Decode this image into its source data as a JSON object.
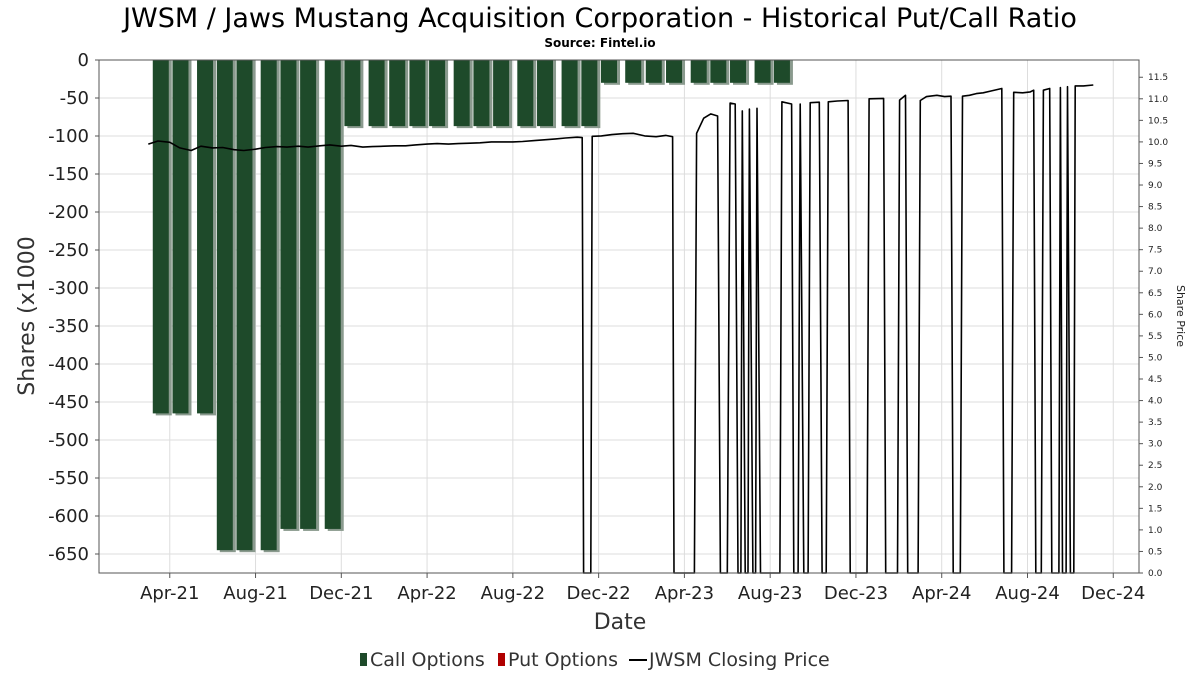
{
  "chart_data": {
    "type": "bar",
    "title": "JWSM / Jaws Mustang Acquisition Corporation - Historical Put/Call Ratio",
    "subtitle": "Source: Fintel.io",
    "xlabel": "Date",
    "ylabel": "Shares (x1000",
    "y2label": "Share Price",
    "ylim": [
      -675,
      0
    ],
    "y2lim": [
      0,
      11.9
    ],
    "yticks": [
      "0",
      "-50",
      "-100",
      "-150",
      "-200",
      "-250",
      "-300",
      "-350",
      "-400",
      "-450",
      "-500",
      "-550",
      "-600",
      "-650"
    ],
    "ytick_values": [
      0,
      -50,
      -100,
      -150,
      -200,
      -250,
      -300,
      -350,
      -400,
      -450,
      -500,
      -550,
      -600,
      -650
    ],
    "y2ticks": [
      "0.0",
      "0.5",
      "1.0",
      "1.5",
      "2.0",
      "2.5",
      "3.0",
      "3.5",
      "4.0",
      "4.5",
      "5.0",
      "5.5",
      "6.0",
      "6.5",
      "7.0",
      "7.5",
      "8.0",
      "8.5",
      "9.0",
      "9.5",
      "10.0",
      "10.5",
      "11.0",
      "11.5"
    ],
    "y2tick_values": [
      0,
      0.5,
      1,
      1.5,
      2,
      2.5,
      3,
      3.5,
      4,
      4.5,
      5,
      5.5,
      6,
      6.5,
      7,
      7.5,
      8,
      8.5,
      9,
      9.5,
      10,
      10.5,
      11,
      11.5
    ],
    "xticks": [
      "Apr-21",
      "Aug-21",
      "Dec-21",
      "Apr-22",
      "Aug-22",
      "Dec-22",
      "Apr-23",
      "Aug-23",
      "Dec-23",
      "Apr-24",
      "Aug-24",
      "Dec-24"
    ],
    "xtick_months": [
      3,
      7,
      11,
      15,
      19,
      23,
      27,
      31,
      35,
      39,
      43,
      47
    ],
    "xlim_months": [
      -0.3,
      48.2
    ],
    "grid": true,
    "legend_position": "bottom",
    "series": [
      {
        "name": "Call Options",
        "type": "bar",
        "color": "#1e4a2a",
        "points": [
          {
            "date": "2021-03-19",
            "value": -465
          },
          {
            "date": "2021-04-16",
            "value": -465
          },
          {
            "date": "2021-05-21",
            "value": -465
          },
          {
            "date": "2021-06-18",
            "value": -645
          },
          {
            "date": "2021-07-16",
            "value": -645
          },
          {
            "date": "2021-08-20",
            "value": -645
          },
          {
            "date": "2021-09-17",
            "value": -617
          },
          {
            "date": "2021-10-15",
            "value": -617
          },
          {
            "date": "2021-11-19",
            "value": -617
          },
          {
            "date": "2021-12-17",
            "value": -87
          },
          {
            "date": "2022-01-21",
            "value": -87
          },
          {
            "date": "2022-02-18",
            "value": -87
          },
          {
            "date": "2022-03-18",
            "value": -87
          },
          {
            "date": "2022-04-15",
            "value": -87
          },
          {
            "date": "2022-05-20",
            "value": -87
          },
          {
            "date": "2022-06-17",
            "value": -87
          },
          {
            "date": "2022-07-15",
            "value": -87
          },
          {
            "date": "2022-08-19",
            "value": -87
          },
          {
            "date": "2022-09-16",
            "value": -87
          },
          {
            "date": "2022-10-21",
            "value": -87
          },
          {
            "date": "2022-11-18",
            "value": -87
          },
          {
            "date": "2022-12-16",
            "value": -30
          },
          {
            "date": "2023-01-20",
            "value": -30
          },
          {
            "date": "2023-02-17",
            "value": -30
          },
          {
            "date": "2023-03-17",
            "value": -30
          },
          {
            "date": "2023-04-21",
            "value": -30
          },
          {
            "date": "2023-05-19",
            "value": -30
          },
          {
            "date": "2023-06-16",
            "value": -30
          },
          {
            "date": "2023-07-21",
            "value": -30
          },
          {
            "date": "2023-08-18",
            "value": -30
          }
        ]
      },
      {
        "name": "Put Options",
        "type": "bar",
        "color": "#b00000",
        "points": []
      },
      {
        "name": "JWSM Closing Price",
        "type": "line",
        "color": "#000000",
        "axis": "right",
        "points": [
          {
            "date": "2021-03-01",
            "value": 9.95
          },
          {
            "date": "2021-03-15",
            "value": 10.02
          },
          {
            "date": "2021-04-01",
            "value": 9.99
          },
          {
            "date": "2021-04-15",
            "value": 9.86
          },
          {
            "date": "2021-05-01",
            "value": 9.8
          },
          {
            "date": "2021-05-15",
            "value": 9.9
          },
          {
            "date": "2021-06-01",
            "value": 9.86
          },
          {
            "date": "2021-06-15",
            "value": 9.87
          },
          {
            "date": "2021-07-01",
            "value": 9.82
          },
          {
            "date": "2021-07-15",
            "value": 9.8
          },
          {
            "date": "2021-08-01",
            "value": 9.83
          },
          {
            "date": "2021-08-15",
            "value": 9.87
          },
          {
            "date": "2021-09-01",
            "value": 9.89
          },
          {
            "date": "2021-09-15",
            "value": 9.88
          },
          {
            "date": "2021-10-01",
            "value": 9.9
          },
          {
            "date": "2021-10-15",
            "value": 9.88
          },
          {
            "date": "2021-11-01",
            "value": 9.91
          },
          {
            "date": "2021-11-15",
            "value": 9.93
          },
          {
            "date": "2021-12-01",
            "value": 9.9
          },
          {
            "date": "2021-12-15",
            "value": 9.92
          },
          {
            "date": "2022-01-01",
            "value": 9.88
          },
          {
            "date": "2022-01-15",
            "value": 9.89
          },
          {
            "date": "2022-02-01",
            "value": 9.9
          },
          {
            "date": "2022-02-15",
            "value": 9.91
          },
          {
            "date": "2022-03-01",
            "value": 9.91
          },
          {
            "date": "2022-03-15",
            "value": 9.93
          },
          {
            "date": "2022-04-01",
            "value": 9.95
          },
          {
            "date": "2022-04-15",
            "value": 9.96
          },
          {
            "date": "2022-05-01",
            "value": 9.95
          },
          {
            "date": "2022-05-15",
            "value": 9.96
          },
          {
            "date": "2022-06-01",
            "value": 9.97
          },
          {
            "date": "2022-06-15",
            "value": 9.98
          },
          {
            "date": "2022-07-01",
            "value": 10.0
          },
          {
            "date": "2022-07-15",
            "value": 10.0
          },
          {
            "date": "2022-08-01",
            "value": 10.0
          },
          {
            "date": "2022-08-15",
            "value": 10.01
          },
          {
            "date": "2022-09-01",
            "value": 10.03
          },
          {
            "date": "2022-09-15",
            "value": 10.05
          },
          {
            "date": "2022-10-01",
            "value": 10.07
          },
          {
            "date": "2022-10-15",
            "value": 10.09
          },
          {
            "date": "2022-11-01",
            "value": 10.11
          },
          {
            "date": "2022-11-08",
            "value": 10.1
          },
          {
            "date": "2022-11-10",
            "value": 0.0
          },
          {
            "date": "2022-11-20",
            "value": 0.0
          },
          {
            "date": "2022-11-22",
            "value": 10.13
          },
          {
            "date": "2022-12-05",
            "value": 10.14
          },
          {
            "date": "2022-12-20",
            "value": 10.17
          },
          {
            "date": "2023-01-05",
            "value": 10.19
          },
          {
            "date": "2023-01-20",
            "value": 10.2
          },
          {
            "date": "2023-02-05",
            "value": 10.14
          },
          {
            "date": "2023-02-20",
            "value": 10.12
          },
          {
            "date": "2023-03-05",
            "value": 10.15
          },
          {
            "date": "2023-03-15",
            "value": 10.12
          },
          {
            "date": "2023-03-17",
            "value": 0.0
          },
          {
            "date": "2023-04-15",
            "value": 0.0
          },
          {
            "date": "2023-04-18",
            "value": 10.2
          },
          {
            "date": "2023-04-28",
            "value": 10.55
          },
          {
            "date": "2023-05-08",
            "value": 10.65
          },
          {
            "date": "2023-05-18",
            "value": 10.6
          },
          {
            "date": "2023-05-22",
            "value": 0.0
          },
          {
            "date": "2023-06-01",
            "value": 0.0
          },
          {
            "date": "2023-06-05",
            "value": 10.9
          },
          {
            "date": "2023-06-12",
            "value": 10.88
          },
          {
            "date": "2023-06-16",
            "value": 0.0
          },
          {
            "date": "2023-06-20",
            "value": 0.0
          },
          {
            "date": "2023-06-22",
            "value": 10.72
          },
          {
            "date": "2023-06-26",
            "value": 0.0
          },
          {
            "date": "2023-06-30",
            "value": 0.0
          },
          {
            "date": "2023-07-02",
            "value": 10.76
          },
          {
            "date": "2023-07-07",
            "value": 0.0
          },
          {
            "date": "2023-07-11",
            "value": 0.0
          },
          {
            "date": "2023-07-13",
            "value": 10.78
          },
          {
            "date": "2023-07-18",
            "value": 0.0
          },
          {
            "date": "2023-08-15",
            "value": 0.0
          },
          {
            "date": "2023-08-18",
            "value": 10.93
          },
          {
            "date": "2023-09-01",
            "value": 10.88
          },
          {
            "date": "2023-09-04",
            "value": 0.0
          },
          {
            "date": "2023-09-10",
            "value": 0.0
          },
          {
            "date": "2023-09-13",
            "value": 10.88
          },
          {
            "date": "2023-09-18",
            "value": 0.0
          },
          {
            "date": "2023-09-24",
            "value": 0.0
          },
          {
            "date": "2023-09-27",
            "value": 10.91
          },
          {
            "date": "2023-10-10",
            "value": 10.92
          },
          {
            "date": "2023-10-14",
            "value": 0.0
          },
          {
            "date": "2023-10-20",
            "value": 0.0
          },
          {
            "date": "2023-10-23",
            "value": 10.93
          },
          {
            "date": "2023-11-05",
            "value": 10.95
          },
          {
            "date": "2023-11-20",
            "value": 10.96
          },
          {
            "date": "2023-11-23",
            "value": 0.0
          },
          {
            "date": "2023-12-17",
            "value": 0.0
          },
          {
            "date": "2023-12-20",
            "value": 11.0
          },
          {
            "date": "2024-01-10",
            "value": 11.01
          },
          {
            "date": "2024-01-13",
            "value": 0.0
          },
          {
            "date": "2024-01-30",
            "value": 0.0
          },
          {
            "date": "2024-02-02",
            "value": 10.97
          },
          {
            "date": "2024-02-10",
            "value": 11.08
          },
          {
            "date": "2024-02-13",
            "value": 0.0
          },
          {
            "date": "2024-02-27",
            "value": 0.0
          },
          {
            "date": "2024-03-01",
            "value": 10.96
          },
          {
            "date": "2024-03-10",
            "value": 11.05
          },
          {
            "date": "2024-03-25",
            "value": 11.08
          },
          {
            "date": "2024-04-05",
            "value": 11.05
          },
          {
            "date": "2024-04-14",
            "value": 11.06
          },
          {
            "date": "2024-04-17",
            "value": 0.0
          },
          {
            "date": "2024-04-27",
            "value": 0.0
          },
          {
            "date": "2024-04-30",
            "value": 11.06
          },
          {
            "date": "2024-05-10",
            "value": 11.08
          },
          {
            "date": "2024-05-20",
            "value": 11.12
          },
          {
            "date": "2024-05-30",
            "value": 11.14
          },
          {
            "date": "2024-06-10",
            "value": 11.18
          },
          {
            "date": "2024-06-25",
            "value": 11.24
          },
          {
            "date": "2024-06-28",
            "value": 0.0
          },
          {
            "date": "2024-07-09",
            "value": 0.0
          },
          {
            "date": "2024-07-12",
            "value": 11.15
          },
          {
            "date": "2024-07-25",
            "value": 11.14
          },
          {
            "date": "2024-08-05",
            "value": 11.16
          },
          {
            "date": "2024-08-10",
            "value": 11.2
          },
          {
            "date": "2024-08-13",
            "value": 0.0
          },
          {
            "date": "2024-08-21",
            "value": 0.0
          },
          {
            "date": "2024-08-24",
            "value": 11.2
          },
          {
            "date": "2024-09-02",
            "value": 11.24
          },
          {
            "date": "2024-09-05",
            "value": 0.0
          },
          {
            "date": "2024-09-15",
            "value": 0.0
          },
          {
            "date": "2024-09-17",
            "value": 11.26
          },
          {
            "date": "2024-09-20",
            "value": 0.0
          },
          {
            "date": "2024-09-25",
            "value": 0.0
          },
          {
            "date": "2024-09-27",
            "value": 11.28
          },
          {
            "date": "2024-10-01",
            "value": 0.0
          },
          {
            "date": "2024-10-06",
            "value": 0.0
          },
          {
            "date": "2024-10-08",
            "value": 11.3
          },
          {
            "date": "2024-10-20",
            "value": 11.3
          },
          {
            "date": "2024-11-03",
            "value": 11.32
          }
        ]
      }
    ]
  }
}
